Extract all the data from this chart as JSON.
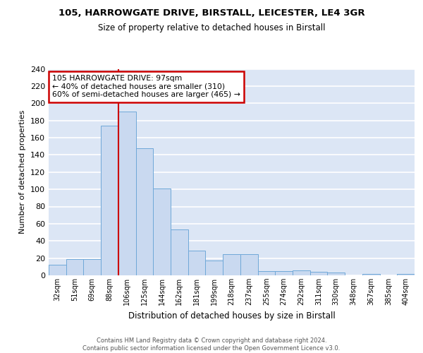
{
  "title": "105, HARROWGATE DRIVE, BIRSTALL, LEICESTER, LE4 3GR",
  "subtitle": "Size of property relative to detached houses in Birstall",
  "xlabel": "Distribution of detached houses by size in Birstall",
  "ylabel": "Number of detached properties",
  "categories": [
    "32sqm",
    "51sqm",
    "69sqm",
    "88sqm",
    "106sqm",
    "125sqm",
    "144sqm",
    "162sqm",
    "181sqm",
    "199sqm",
    "218sqm",
    "237sqm",
    "255sqm",
    "274sqm",
    "292sqm",
    "311sqm",
    "330sqm",
    "348sqm",
    "367sqm",
    "385sqm",
    "404sqm"
  ],
  "values": [
    12,
    19,
    19,
    174,
    190,
    148,
    101,
    53,
    29,
    17,
    25,
    25,
    5,
    5,
    6,
    4,
    3,
    0,
    2,
    0,
    2
  ],
  "bar_color": "#c9d9f0",
  "bar_edge_color": "#6fa8d8",
  "bg_color": "#dce6f5",
  "grid_color": "#ffffff",
  "vline_x": 3.5,
  "vline_color": "#cc0000",
  "annotation_text": "105 HARROWGATE DRIVE: 97sqm\n← 40% of detached houses are smaller (310)\n60% of semi-detached houses are larger (465) →",
  "annotation_box_color": "#ffffff",
  "annotation_box_edge": "#cc0000",
  "footer_text": "Contains HM Land Registry data © Crown copyright and database right 2024.\nContains public sector information licensed under the Open Government Licence v3.0.",
  "ylim": [
    0,
    240
  ],
  "yticks": [
    0,
    20,
    40,
    60,
    80,
    100,
    120,
    140,
    160,
    180,
    200,
    220,
    240
  ]
}
